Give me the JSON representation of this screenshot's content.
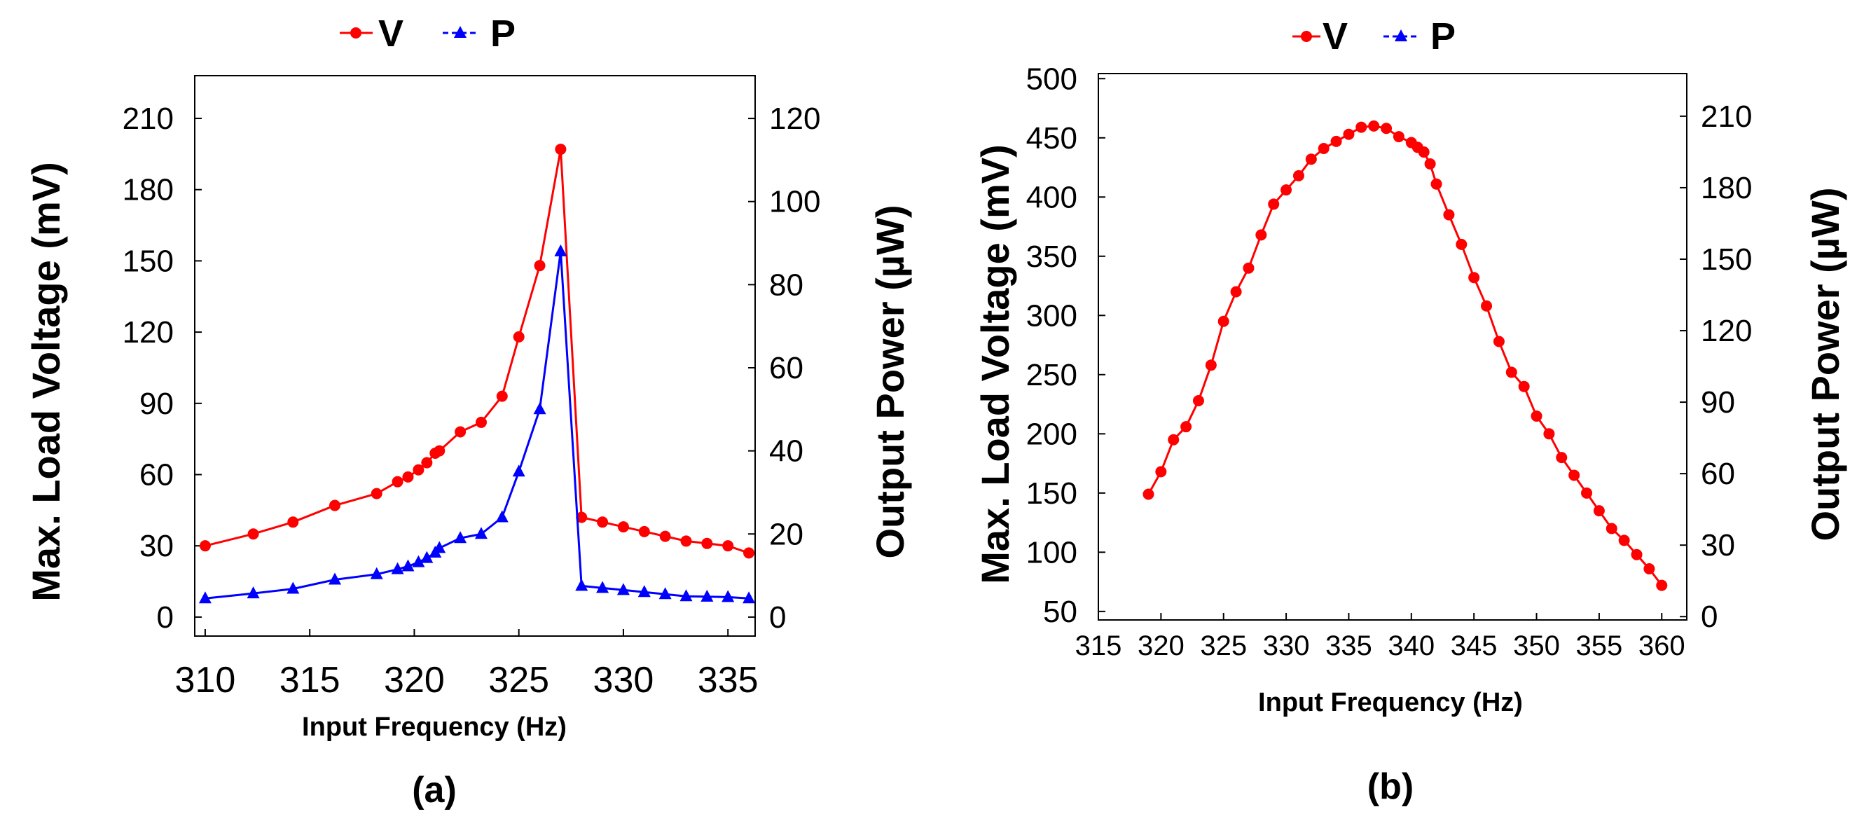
{
  "chart_data": [
    {
      "type": "line",
      "panel_label": "(a)",
      "xlabel": "Input Frequency (Hz)",
      "ylabel": "Max. Load Voltage (mV)",
      "y2label": "Output Power  (µW)",
      "legend": [
        "V",
        "P"
      ],
      "legend_position": "top",
      "xlim": [
        309.5,
        336.3
      ],
      "ylim": [
        -8,
        228
      ],
      "y2lim": [
        -4.57,
        130.3
      ],
      "xticks": [
        "310",
        "315",
        "320",
        "325",
        "330",
        "335"
      ],
      "yticks": [
        "0",
        "30",
        "60",
        "90",
        "120",
        "150",
        "180",
        "210"
      ],
      "y2ticks": [
        "0",
        "20",
        "40",
        "60",
        "80",
        "100",
        "120"
      ],
      "series": [
        {
          "name": "V",
          "axis": "left",
          "color": "#ff0000",
          "marker": "circle",
          "x": [
            310,
            312.3,
            314.2,
            316.2,
            318.2,
            319.2,
            319.7,
            320.2,
            320.6,
            321,
            321.2,
            322.2,
            323.2,
            324.2,
            325,
            326,
            327,
            328,
            329,
            330,
            331,
            332,
            333,
            334,
            335,
            336
          ],
          "y": [
            30,
            35,
            40,
            47,
            52,
            57,
            59,
            62,
            65,
            69,
            70,
            78,
            82,
            93,
            118,
            148,
            197,
            42,
            40,
            38,
            36,
            34,
            32,
            31,
            30,
            27
          ]
        },
        {
          "name": "P",
          "axis": "right",
          "color": "#0000ff",
          "marker": "triangle",
          "x": [
            310,
            312.3,
            314.2,
            316.2,
            318.2,
            319.2,
            319.7,
            320.2,
            320.6,
            321,
            321.2,
            322.2,
            323.2,
            324.2,
            325,
            326,
            327,
            328,
            329,
            330,
            331,
            332,
            333,
            334,
            335,
            336
          ],
          "y": [
            4.5,
            5.7,
            6.8,
            9,
            10.3,
            11.5,
            12.2,
            13.2,
            14.2,
            15.5,
            16.6,
            19,
            20,
            24,
            35,
            50,
            88,
            7.5,
            7,
            6.5,
            6,
            5.5,
            5,
            4.9,
            4.8,
            4.5
          ]
        }
      ]
    },
    {
      "type": "line",
      "panel_label": "(b)",
      "xlabel": "Input Frequency (Hz)",
      "ylabel": "Max. Load Voltage (mV)",
      "y2label": "Output Power  (µW)",
      "legend": [
        "V",
        "P"
      ],
      "legend_position": "top",
      "xlim": [
        315,
        362
      ],
      "ylim": [
        42.8,
        504.3
      ],
      "y2lim": [
        -1.4,
        227.9
      ],
      "xticks": [
        "315",
        "320",
        "325",
        "330",
        "335",
        "340",
        "345",
        "350",
        "355",
        "360"
      ],
      "yticks": [
        "50",
        "100",
        "150",
        "200",
        "250",
        "300",
        "350",
        "400",
        "450",
        "500"
      ],
      "y2ticks": [
        "0",
        "30",
        "60",
        "90",
        "120",
        "150",
        "180",
        "210"
      ],
      "series": [
        {
          "name": "V",
          "axis": "left",
          "color": "#ff0000",
          "marker": "circle",
          "x": [
            319,
            320,
            321,
            322,
            323,
            324,
            325,
            326,
            327,
            328,
            329,
            330,
            331,
            332,
            333,
            334,
            335,
            336,
            337,
            338,
            339,
            340,
            340.5,
            341,
            341.5,
            342,
            343,
            344,
            345,
            346,
            347,
            348,
            349,
            350,
            351,
            352,
            353,
            354,
            355,
            356,
            357,
            358,
            359,
            360
          ],
          "y": [
            149,
            168,
            195,
            206,
            228,
            258,
            295,
            320,
            340,
            368,
            394,
            406,
            418,
            432,
            441,
            447,
            453,
            459,
            460,
            458,
            451,
            446,
            442,
            438,
            428,
            411,
            385,
            360,
            332,
            308,
            278,
            252,
            240,
            215,
            200,
            180,
            165,
            150,
            135,
            120,
            110,
            98,
            86,
            72
          ],
          "_note": "values read off plot"
        }
      ]
    }
  ]
}
